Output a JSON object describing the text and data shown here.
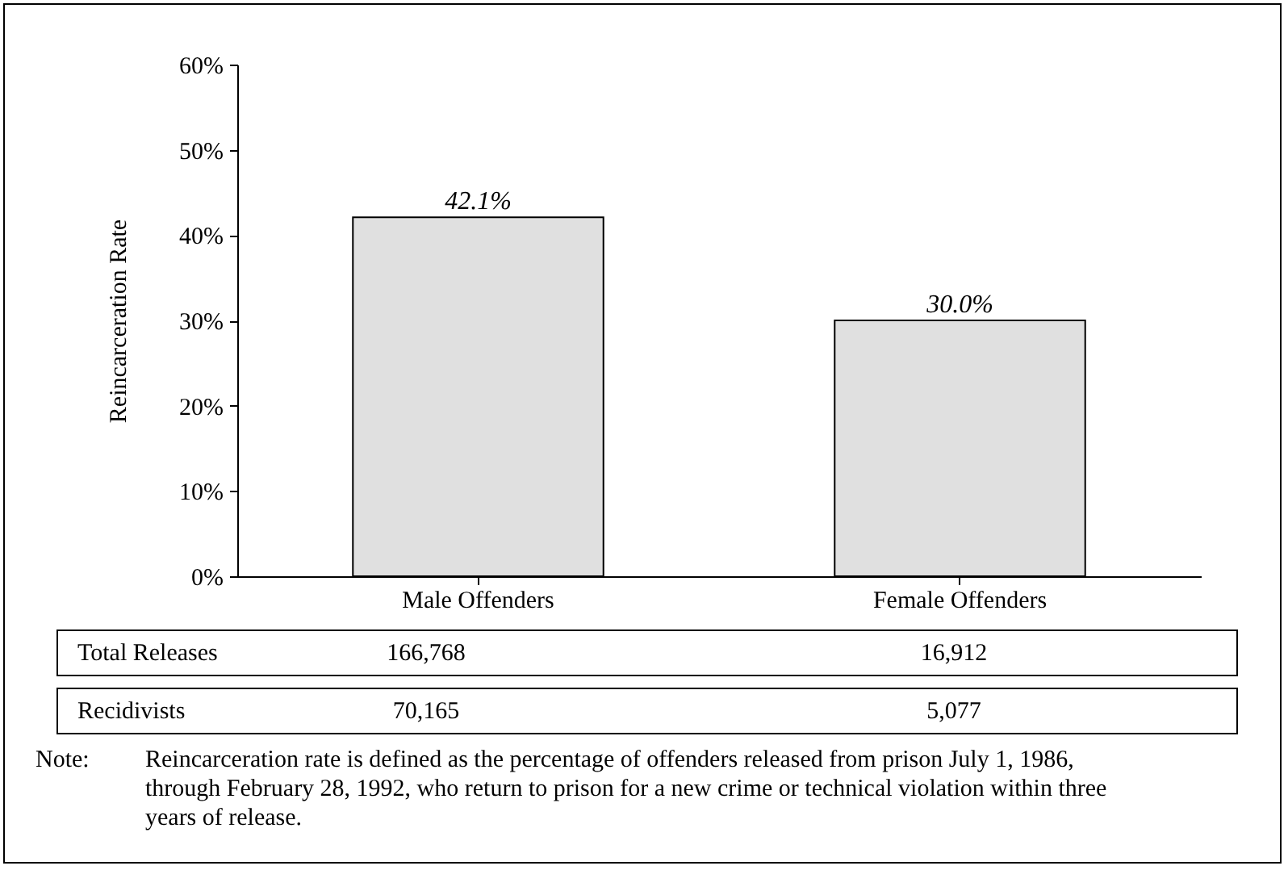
{
  "chart_data": {
    "type": "bar",
    "ylabel": "Reincarceration Rate",
    "categories": [
      "Male Offenders",
      "Female Offenders"
    ],
    "values": [
      42.1,
      30.0
    ],
    "color": "#e0e0e0",
    "value_labels": [
      "42.1%",
      "30.0%"
    ],
    "ylim": [
      0,
      60
    ],
    "yticks": [
      {
        "value": 0,
        "label": "0%"
      },
      {
        "value": 10,
        "label": "10%"
      },
      {
        "value": 20,
        "label": "20%"
      },
      {
        "value": 30,
        "label": "30%"
      },
      {
        "value": 40,
        "label": "40%"
      },
      {
        "value": 50,
        "label": "50%"
      },
      {
        "value": 60,
        "label": "60%"
      }
    ],
    "grid": false,
    "annotations": [
      "Total Releases",
      "166,768",
      "16,912",
      "Recidivists",
      "70,165",
      "5,077",
      "Note:",
      "Reincarceration rate is defined as the percentage of offenders released from prison July 1, 1986, through February 28, 1992, who return to prison for a new crime or technical violation within three years of release."
    ]
  }
}
